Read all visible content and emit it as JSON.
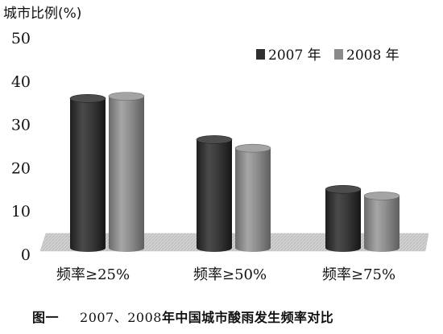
{
  "chart_data": {
    "type": "bar",
    "title": "",
    "ylabel": "城市比例(%)",
    "xlabel": "",
    "categories": [
      "频率≥25%",
      "频率≥50%",
      "频率≥75%"
    ],
    "series": [
      {
        "name": "2007 年",
        "values": [
          36,
          26.5,
          15
        ],
        "color": "#3a3a3a"
      },
      {
        "name": "2008 年",
        "values": [
          36.5,
          24.5,
          13.5
        ],
        "color": "#8a8a8a"
      }
    ],
    "ylim": [
      0,
      50
    ],
    "yticks": [
      0,
      10,
      20,
      30,
      40,
      50
    ],
    "grid": false,
    "legend_position": "top-right",
    "bar_style": "3d-cylinder"
  },
  "caption": {
    "lead": "图一",
    "years": "2007、2008",
    "tail": "年中国城市酸雨发生频率对比"
  }
}
